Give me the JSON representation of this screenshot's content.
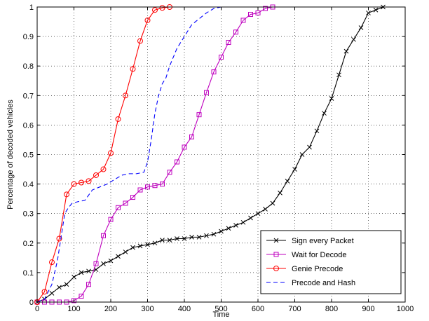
{
  "chart_data": {
    "type": "line",
    "title": "",
    "xlabel": "Time",
    "ylabel": "Percentage of decoded vehicles",
    "xlim": [
      0,
      1000
    ],
    "ylim": [
      0,
      1
    ],
    "xticks": [
      "0",
      "100",
      "200",
      "300",
      "400",
      "500",
      "600",
      "700",
      "800",
      "900",
      "1000"
    ],
    "yticks": [
      "0",
      "0.1",
      "0.2",
      "0.3",
      "0.4",
      "0.5",
      "0.6",
      "0.7",
      "0.8",
      "0.9",
      "1"
    ],
    "grid": true,
    "legend": "bottom-right",
    "series": [
      {
        "name": "Sign every Packet",
        "color": "#000000",
        "marker": "x",
        "line": "solid",
        "x": [
          0,
          20,
          40,
          60,
          80,
          100,
          120,
          140,
          160,
          180,
          200,
          220,
          240,
          260,
          280,
          300,
          320,
          340,
          360,
          380,
          400,
          420,
          440,
          460,
          480,
          500,
          520,
          540,
          560,
          580,
          600,
          620,
          640,
          660,
          680,
          700,
          720,
          740,
          760,
          780,
          800,
          820,
          840,
          860,
          880,
          900,
          920,
          940
        ],
        "y": [
          0,
          0.01,
          0.03,
          0.05,
          0.06,
          0.085,
          0.1,
          0.105,
          0.11,
          0.13,
          0.14,
          0.155,
          0.17,
          0.185,
          0.19,
          0.195,
          0.2,
          0.21,
          0.21,
          0.215,
          0.215,
          0.22,
          0.22,
          0.225,
          0.23,
          0.24,
          0.25,
          0.26,
          0.27,
          0.285,
          0.3,
          0.315,
          0.335,
          0.37,
          0.41,
          0.45,
          0.5,
          0.525,
          0.58,
          0.64,
          0.69,
          0.77,
          0.85,
          0.89,
          0.93,
          0.98,
          0.99,
          1.0
        ]
      },
      {
        "name": "Wait for Decode",
        "color": "#bf00bf",
        "marker": "square",
        "line": "solid",
        "x": [
          0,
          20,
          40,
          60,
          80,
          100,
          120,
          140,
          160,
          180,
          200,
          220,
          240,
          260,
          280,
          300,
          320,
          340,
          360,
          380,
          400,
          420,
          440,
          460,
          480,
          500,
          520,
          540,
          560,
          580,
          600,
          620,
          640
        ],
        "y": [
          0,
          0,
          0,
          0,
          0,
          0.005,
          0.02,
          0.06,
          0.13,
          0.225,
          0.28,
          0.32,
          0.335,
          0.355,
          0.38,
          0.39,
          0.395,
          0.4,
          0.44,
          0.475,
          0.525,
          0.56,
          0.635,
          0.71,
          0.78,
          0.83,
          0.88,
          0.915,
          0.955,
          0.975,
          0.98,
          0.995,
          1.0
        ]
      },
      {
        "name": "Genie Precode",
        "color": "#ff0000",
        "marker": "circle",
        "line": "solid",
        "x": [
          0,
          20,
          40,
          60,
          80,
          100,
          120,
          140,
          160,
          180,
          200,
          220,
          240,
          260,
          280,
          300,
          320,
          340,
          360
        ],
        "y": [
          0,
          0.035,
          0.135,
          0.215,
          0.365,
          0.4,
          0.405,
          0.41,
          0.43,
          0.45,
          0.505,
          0.62,
          0.7,
          0.79,
          0.885,
          0.955,
          0.99,
          0.997,
          1.0
        ]
      },
      {
        "name": "Precode and Hash",
        "color": "#0000ff",
        "marker": "none",
        "line": "dashed",
        "x": [
          0,
          20,
          40,
          55,
          65,
          75,
          85,
          95,
          110,
          130,
          150,
          170,
          190,
          210,
          230,
          250,
          270,
          290,
          300,
          310,
          320,
          330,
          340,
          350,
          360,
          370,
          380,
          400,
          420,
          440,
          460,
          480,
          500
        ],
        "y": [
          0,
          0.01,
          0.06,
          0.14,
          0.22,
          0.3,
          0.32,
          0.335,
          0.34,
          0.345,
          0.38,
          0.39,
          0.4,
          0.415,
          0.43,
          0.435,
          0.435,
          0.44,
          0.475,
          0.55,
          0.64,
          0.7,
          0.74,
          0.76,
          0.8,
          0.83,
          0.86,
          0.9,
          0.94,
          0.96,
          0.98,
          0.995,
          1.0
        ]
      }
    ]
  }
}
